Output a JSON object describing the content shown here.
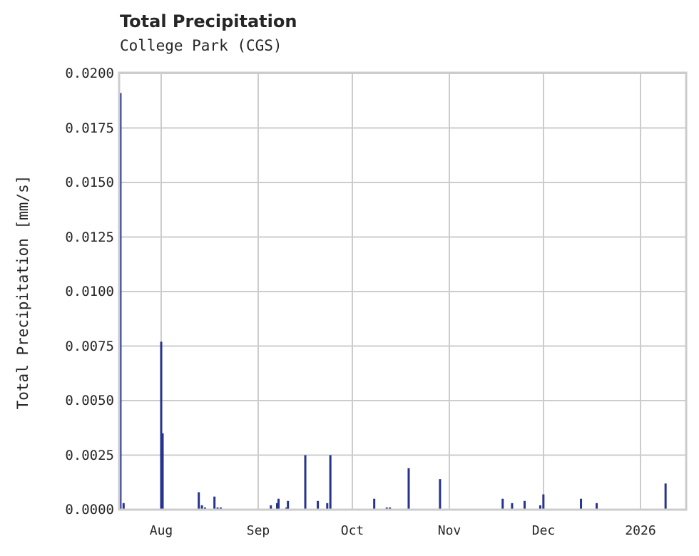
{
  "chart_data": {
    "type": "bar",
    "title": "Total Precipitation",
    "subtitle": "College Park (CGS)",
    "xlabel": "",
    "ylabel": "Total Precipitation [mm/s]",
    "ylim": [
      0,
      0.02
    ],
    "yticks": [
      "0.0000",
      "0.0025",
      "0.0050",
      "0.0075",
      "0.0100",
      "0.0125",
      "0.0150",
      "0.0175",
      "0.0200"
    ],
    "xticks": [
      "Aug",
      "Sep",
      "Oct",
      "Nov",
      "Dec",
      "2026"
    ],
    "grid": true,
    "series_color": "#26338f",
    "series": [
      {
        "name": "Total Precipitation",
        "points": [
          {
            "date": "2025-07-19",
            "value": 0.0191
          },
          {
            "date": "2025-07-20",
            "value": 0.0003
          },
          {
            "date": "2025-08-01",
            "value": 0.0077
          },
          {
            "date": "2025-08-01b",
            "value": 0.0035
          },
          {
            "date": "2025-08-13",
            "value": 0.0008
          },
          {
            "date": "2025-08-14",
            "value": 0.0002
          },
          {
            "date": "2025-08-15",
            "value": 0.0001
          },
          {
            "date": "2025-08-18",
            "value": 0.0006
          },
          {
            "date": "2025-08-19",
            "value": 0.0001
          },
          {
            "date": "2025-08-20",
            "value": 0.0001
          },
          {
            "date": "2025-09-05",
            "value": 0.0002
          },
          {
            "date": "2025-09-07",
            "value": 0.0003
          },
          {
            "date": "2025-09-07b",
            "value": 0.0005
          },
          {
            "date": "2025-09-10",
            "value": 0.0001
          },
          {
            "date": "2025-09-10b",
            "value": 0.0004
          },
          {
            "date": "2025-09-16",
            "value": 0.0025
          },
          {
            "date": "2025-09-20",
            "value": 0.0004
          },
          {
            "date": "2025-09-23",
            "value": 0.0003
          },
          {
            "date": "2025-09-24",
            "value": 0.0025
          },
          {
            "date": "2025-10-08",
            "value": 0.0005
          },
          {
            "date": "2025-10-12",
            "value": 0.0001
          },
          {
            "date": "2025-10-13",
            "value": 0.0001
          },
          {
            "date": "2025-10-19",
            "value": 0.0019
          },
          {
            "date": "2025-10-29",
            "value": 0.0014
          },
          {
            "date": "2025-11-18",
            "value": 0.0005
          },
          {
            "date": "2025-11-21",
            "value": 0.0003
          },
          {
            "date": "2025-11-25",
            "value": 0.0004
          },
          {
            "date": "2025-11-30",
            "value": 0.0002
          },
          {
            "date": "2025-12-01",
            "value": 0.0007
          },
          {
            "date": "2025-12-13",
            "value": 0.0005
          },
          {
            "date": "2025-12-18",
            "value": 0.0003
          },
          {
            "date": "2026-01-09",
            "value": 0.0012
          }
        ]
      }
    ]
  }
}
